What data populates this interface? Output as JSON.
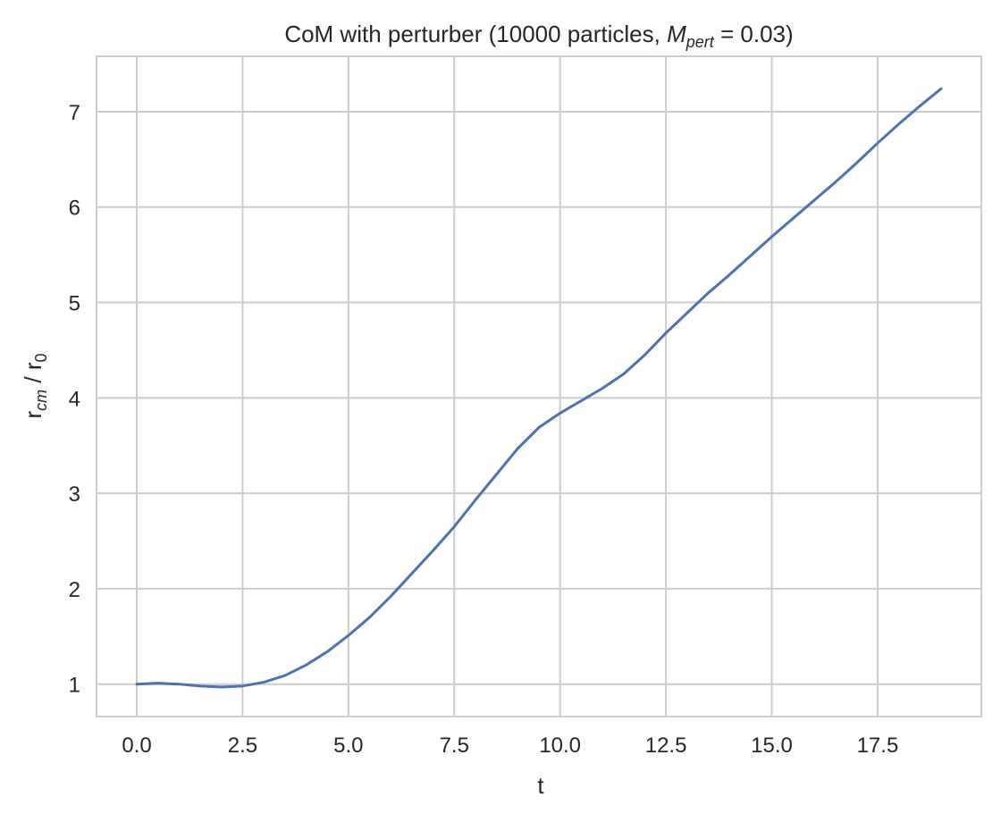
{
  "chart_data": {
    "type": "line",
    "title": {
      "prefix": "CoM with perturber (10000 particles, ",
      "math_base": "M",
      "math_sub": "pert",
      "suffix": "  = 0.03)"
    },
    "xlabel": "t",
    "ylabel": {
      "base": "r",
      "base_sub": "cm",
      "divider": " / ",
      "ref": "r",
      "ref_sub": "0"
    },
    "xlim": [
      -0.95,
      19.95
    ],
    "ylim": [
      0.66,
      7.58
    ],
    "xticks": [
      0.0,
      2.5,
      5.0,
      7.5,
      10.0,
      12.5,
      15.0,
      17.5
    ],
    "xtick_labels": [
      "0.0",
      "2.5",
      "5.0",
      "7.5",
      "10.0",
      "12.5",
      "15.0",
      "17.5"
    ],
    "yticks": [
      1,
      2,
      3,
      4,
      5,
      6,
      7
    ],
    "ytick_labels": [
      "1",
      "2",
      "3",
      "4",
      "5",
      "6",
      "7"
    ],
    "grid": true,
    "line_color": "#4c72b0",
    "grid_color": "#cccccc",
    "spine_color": "#cccccc",
    "series": [
      {
        "x": [
          0.0,
          0.5,
          1.0,
          1.5,
          2.0,
          2.5,
          3.0,
          3.5,
          4.0,
          4.5,
          5.0,
          5.5,
          6.0,
          6.5,
          7.0,
          7.5,
          8.0,
          8.5,
          9.0,
          9.5,
          10.0,
          10.5,
          11.0,
          11.5,
          12.0,
          12.5,
          13.0,
          13.5,
          14.0,
          14.5,
          15.0,
          15.5,
          16.0,
          16.5,
          17.0,
          17.5,
          18.0,
          18.5,
          19.0
        ],
        "y": [
          1.0,
          1.01,
          1.0,
          0.98,
          0.97,
          0.98,
          1.02,
          1.09,
          1.2,
          1.34,
          1.51,
          1.7,
          1.92,
          2.16,
          2.4,
          2.65,
          2.93,
          3.2,
          3.47,
          3.69,
          3.84,
          3.97,
          4.1,
          4.25,
          4.45,
          4.68,
          4.89,
          5.1,
          5.29,
          5.49,
          5.69,
          5.88,
          6.07,
          6.26,
          6.46,
          6.67,
          6.87,
          7.06,
          7.24
        ]
      }
    ]
  }
}
